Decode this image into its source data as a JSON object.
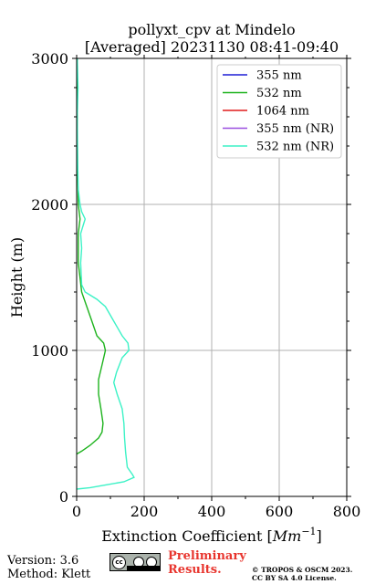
{
  "chart_data": {
    "type": "line",
    "title_line1": "pollyxt_cpv at Mindelo",
    "title_line2": "[Averaged] 20231130 08:41-09:40",
    "xlabel_prefix": "Extinction Coefficient [",
    "xlabel_unit": "Mm",
    "xlabel_exp": "−1",
    "xlabel_suffix": "]",
    "ylabel": "Height (m)",
    "xlim": [
      0,
      800
    ],
    "ylim": [
      0,
      3000
    ],
    "x_ticks": [
      "0",
      "200",
      "400",
      "600",
      "800"
    ],
    "y_ticks": [
      "0",
      "1000",
      "2000",
      "3000"
    ],
    "grid": true,
    "legend_position": "top-right",
    "series": [
      {
        "name": "355 nm",
        "color": "#1f1fd6",
        "points": []
      },
      {
        "name": "532 nm",
        "color": "#1db31d",
        "points": [
          [
            0,
            290
          ],
          [
            15,
            310
          ],
          [
            40,
            350
          ],
          [
            65,
            400
          ],
          [
            75,
            440
          ],
          [
            78,
            500
          ],
          [
            72,
            600
          ],
          [
            65,
            700
          ],
          [
            65,
            800
          ],
          [
            75,
            900
          ],
          [
            85,
            1000
          ],
          [
            80,
            1050
          ],
          [
            60,
            1100
          ],
          [
            45,
            1200
          ],
          [
            30,
            1300
          ],
          [
            15,
            1400
          ],
          [
            10,
            1500
          ],
          [
            5,
            1600
          ],
          [
            5,
            1700
          ],
          [
            5,
            1800
          ],
          [
            10,
            1900
          ],
          [
            5,
            2000
          ],
          [
            3,
            2200
          ],
          [
            2,
            2500
          ],
          [
            2,
            3000
          ]
        ]
      },
      {
        "name": "1064 nm",
        "color": "#e01b1b",
        "points": []
      },
      {
        "name": "355 nm (NR)",
        "color": "#9a4fe0",
        "points": []
      },
      {
        "name": "532 nm (NR)",
        "color": "#3cf2c6",
        "points": [
          [
            0,
            50
          ],
          [
            40,
            60
          ],
          [
            90,
            80
          ],
          [
            140,
            100
          ],
          [
            170,
            130
          ],
          [
            165,
            150
          ],
          [
            150,
            200
          ],
          [
            145,
            300
          ],
          [
            142,
            400
          ],
          [
            140,
            500
          ],
          [
            135,
            600
          ],
          [
            120,
            700
          ],
          [
            110,
            780
          ],
          [
            118,
            850
          ],
          [
            135,
            950
          ],
          [
            155,
            1000
          ],
          [
            152,
            1050
          ],
          [
            135,
            1100
          ],
          [
            110,
            1200
          ],
          [
            85,
            1300
          ],
          [
            60,
            1350
          ],
          [
            25,
            1400
          ],
          [
            15,
            1450
          ],
          [
            12,
            1600
          ],
          [
            15,
            1700
          ],
          [
            12,
            1800
          ],
          [
            25,
            1900
          ],
          [
            15,
            1950
          ],
          [
            10,
            2000
          ],
          [
            5,
            2100
          ],
          [
            3,
            2300
          ],
          [
            2,
            2600
          ],
          [
            4,
            2800
          ],
          [
            2,
            3000
          ]
        ]
      }
    ]
  },
  "footer": {
    "version": "Version: 3.6",
    "method": "Method: Klett",
    "cc_text": "cc",
    "preliminary_line1": "Preliminary",
    "preliminary_line2": "Results.",
    "copyright_line1": "© TROPOS & OSCM 2023.",
    "copyright_line2": "CC BY SA 4.0 License."
  }
}
